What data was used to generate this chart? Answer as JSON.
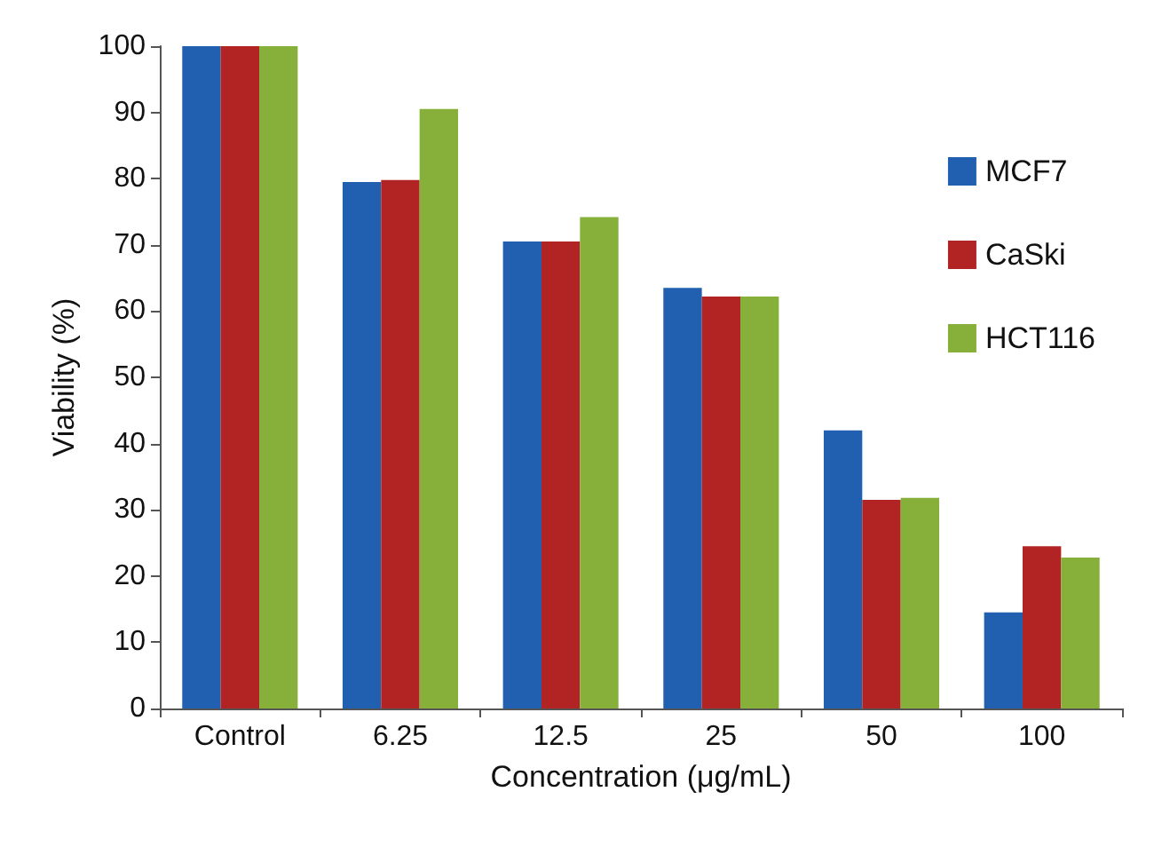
{
  "chart_data": {
    "type": "bar",
    "xlabel": "Concentration (μg/mL)",
    "ylabel": "Viability (%)",
    "categories": [
      "Control",
      "6.25",
      "12.5",
      "25",
      "50",
      "100"
    ],
    "series": [
      {
        "name": "MCF7",
        "color": "#2160b0",
        "values": [
          100,
          79.5,
          70.5,
          63.5,
          42,
          14.5
        ]
      },
      {
        "name": "CaSki",
        "color": "#b22424",
        "values": [
          100,
          79.8,
          70.5,
          62.2,
          31.5,
          24.5
        ]
      },
      {
        "name": "HCT116",
        "color": "#86b03a",
        "values": [
          100,
          90.5,
          74.2,
          62.2,
          31.8,
          22.8
        ]
      }
    ],
    "ylim": [
      0,
      100
    ],
    "yticks": [
      0,
      10,
      20,
      30,
      40,
      50,
      60,
      70,
      80,
      90,
      100
    ],
    "grid": false,
    "legend": "top right"
  }
}
